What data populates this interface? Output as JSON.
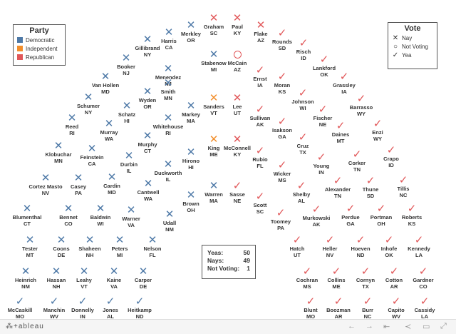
{
  "party_legend": {
    "title": "Party",
    "items": [
      {
        "label": "Democratic",
        "color": "#4e79a7"
      },
      {
        "label": "Independent",
        "color": "#f28e2b"
      },
      {
        "label": "Republican",
        "color": "#e15759"
      }
    ]
  },
  "vote_legend": {
    "title": "Vote",
    "items": [
      {
        "label": "Nay",
        "icon": "x-icon"
      },
      {
        "label": "Not Voting",
        "icon": "circle-icon"
      },
      {
        "label": "Yea",
        "icon": "check-icon"
      }
    ]
  },
  "tally": {
    "yeas_label": "Yeas:",
    "yeas": "50",
    "nays_label": "Nays:",
    "nays": "49",
    "nv_label": "Not Voting:",
    "nv": "1"
  },
  "colors": {
    "democratic": "#4e79a7",
    "independent": "#f28e2b",
    "republican": "#e15759"
  },
  "senators": [
    {
      "name": "Graham",
      "state": "SC",
      "party": "R",
      "vote": "nay"
    },
    {
      "name": "Paul",
      "state": "KY",
      "party": "R",
      "vote": "nay"
    },
    {
      "name": "Flake",
      "state": "AZ",
      "party": "R",
      "vote": "nay"
    },
    {
      "name": "Merkley",
      "state": "OR",
      "party": "D",
      "vote": "nay"
    },
    {
      "name": "Harris",
      "state": "CA",
      "party": "D",
      "vote": "nay"
    },
    {
      "name": "Rounds",
      "state": "SD",
      "party": "R",
      "vote": "yea"
    },
    {
      "name": "Gillibrand",
      "state": "NY",
      "party": "D",
      "vote": "nay"
    },
    {
      "name": "Risch",
      "state": "ID",
      "party": "R",
      "vote": "yea"
    },
    {
      "name": "Stabenow",
      "state": "MI",
      "party": "D",
      "vote": "nay"
    },
    {
      "name": "McCain",
      "state": "AZ",
      "party": "R",
      "vote": "nv"
    },
    {
      "name": "Booker",
      "state": "NJ",
      "party": "D",
      "vote": "nay"
    },
    {
      "name": "Lankford",
      "state": "OK",
      "party": "R",
      "vote": "yea"
    },
    {
      "name": "Menendez",
      "state": "NJ",
      "party": "D",
      "vote": "nay"
    },
    {
      "name": "Ernst",
      "state": "IA",
      "party": "R",
      "vote": "yea"
    },
    {
      "name": "Van Hollen",
      "state": "MD",
      "party": "D",
      "vote": "nay"
    },
    {
      "name": "Smith",
      "state": "MN",
      "party": "D",
      "vote": "nay"
    },
    {
      "name": "Moran",
      "state": "KS",
      "party": "R",
      "vote": "yea"
    },
    {
      "name": "Grassley",
      "state": "IA",
      "party": "R",
      "vote": "yea"
    },
    {
      "name": "Wyden",
      "state": "OR",
      "party": "D",
      "vote": "nay"
    },
    {
      "name": "Johnson",
      "state": "WI",
      "party": "R",
      "vote": "yea"
    },
    {
      "name": "Schumer",
      "state": "NY",
      "party": "D",
      "vote": "nay"
    },
    {
      "name": "Sanders",
      "state": "VT",
      "party": "I",
      "vote": "nay"
    },
    {
      "name": "Lee",
      "state": "UT",
      "party": "R",
      "vote": "nay"
    },
    {
      "name": "Barrasso",
      "state": "WY",
      "party": "R",
      "vote": "yea"
    },
    {
      "name": "Schatz",
      "state": "HI",
      "party": "D",
      "vote": "nay"
    },
    {
      "name": "Markey",
      "state": "MA",
      "party": "D",
      "vote": "nay"
    },
    {
      "name": "Sullivan",
      "state": "AK",
      "party": "R",
      "vote": "yea"
    },
    {
      "name": "Fischer",
      "state": "NE",
      "party": "R",
      "vote": "yea"
    },
    {
      "name": "Reed",
      "state": "RI",
      "party": "D",
      "vote": "nay"
    },
    {
      "name": "Whitehouse",
      "state": "RI",
      "party": "D",
      "vote": "nay"
    },
    {
      "name": "Murray",
      "state": "WA",
      "party": "D",
      "vote": "nay"
    },
    {
      "name": "Isakson",
      "state": "GA",
      "party": "R",
      "vote": "yea"
    },
    {
      "name": "Daines",
      "state": "MT",
      "party": "R",
      "vote": "yea"
    },
    {
      "name": "Enzi",
      "state": "WY",
      "party": "R",
      "vote": "yea"
    },
    {
      "name": "Murphy",
      "state": "CT",
      "party": "D",
      "vote": "nay"
    },
    {
      "name": "Cruz",
      "state": "TX",
      "party": "R",
      "vote": "yea"
    },
    {
      "name": "King",
      "state": "ME",
      "party": "I",
      "vote": "nay"
    },
    {
      "name": "McConnell",
      "state": "KY",
      "party": "R",
      "vote": "nay"
    },
    {
      "name": "Klobuchar",
      "state": "MN",
      "party": "D",
      "vote": "nay"
    },
    {
      "name": "Feinstein",
      "state": "CA",
      "party": "D",
      "vote": "nay"
    },
    {
      "name": "Durbin",
      "state": "IL",
      "party": "D",
      "vote": "nay"
    },
    {
      "name": "Hirono",
      "state": "HI",
      "party": "D",
      "vote": "nay"
    },
    {
      "name": "Rubio",
      "state": "FL",
      "party": "R",
      "vote": "yea"
    },
    {
      "name": "Young",
      "state": "IN",
      "party": "R",
      "vote": "yea"
    },
    {
      "name": "Corker",
      "state": "TN",
      "party": "R",
      "vote": "yea"
    },
    {
      "name": "Crapo",
      "state": "ID",
      "party": "R",
      "vote": "yea"
    },
    {
      "name": "Duckworth",
      "state": "IL",
      "party": "D",
      "vote": "nay"
    },
    {
      "name": "Wicker",
      "state": "MS",
      "party": "R",
      "vote": "yea"
    },
    {
      "name": "Cortez Masto",
      "state": "NV",
      "party": "D",
      "vote": "nay"
    },
    {
      "name": "Casey",
      "state": "PA",
      "party": "D",
      "vote": "nay"
    },
    {
      "name": "Cardin",
      "state": "MD",
      "party": "D",
      "vote": "nay"
    },
    {
      "name": "Cantwell",
      "state": "WA",
      "party": "D",
      "vote": "nay"
    },
    {
      "name": "Warren",
      "state": "MA",
      "party": "D",
      "vote": "nay"
    },
    {
      "name": "Sasse",
      "state": "NE",
      "party": "R",
      "vote": "yea"
    },
    {
      "name": "Shelby",
      "state": "AL",
      "party": "R",
      "vote": "yea"
    },
    {
      "name": "Alexander",
      "state": "TN",
      "party": "R",
      "vote": "yea"
    },
    {
      "name": "Thune",
      "state": "SD",
      "party": "R",
      "vote": "yea"
    },
    {
      "name": "Tillis",
      "state": "NC",
      "party": "R",
      "vote": "yea"
    },
    {
      "name": "Brown",
      "state": "OH",
      "party": "D",
      "vote": "nay"
    },
    {
      "name": "Scott",
      "state": "SC",
      "party": "R",
      "vote": "yea"
    },
    {
      "name": "Blumenthal",
      "state": "CT",
      "party": "D",
      "vote": "nay"
    },
    {
      "name": "Bennet",
      "state": "CO",
      "party": "D",
      "vote": "nay"
    },
    {
      "name": "Baldwin",
      "state": "WI",
      "party": "D",
      "vote": "nay"
    },
    {
      "name": "Warner",
      "state": "VA",
      "party": "D",
      "vote": "nay"
    },
    {
      "name": "Udall",
      "state": "NM",
      "party": "D",
      "vote": "nay"
    },
    {
      "name": "Toomey",
      "state": "PA",
      "party": "R",
      "vote": "yea"
    },
    {
      "name": "Murkowski",
      "state": "AK",
      "party": "R",
      "vote": "yea"
    },
    {
      "name": "Perdue",
      "state": "GA",
      "party": "R",
      "vote": "yea"
    },
    {
      "name": "Portman",
      "state": "OH",
      "party": "R",
      "vote": "yea"
    },
    {
      "name": "Roberts",
      "state": "KS",
      "party": "R",
      "vote": "yea"
    },
    {
      "name": "Tester",
      "state": "MT",
      "party": "D",
      "vote": "nay"
    },
    {
      "name": "Coons",
      "state": "DE",
      "party": "D",
      "vote": "nay"
    },
    {
      "name": "Shaheen",
      "state": "NH",
      "party": "D",
      "vote": "nay"
    },
    {
      "name": "Peters",
      "state": "MI",
      "party": "D",
      "vote": "nay"
    },
    {
      "name": "Nelson",
      "state": "FL",
      "party": "D",
      "vote": "nay"
    },
    {
      "name": "Hatch",
      "state": "UT",
      "party": "R",
      "vote": "yea"
    },
    {
      "name": "Heller",
      "state": "NV",
      "party": "R",
      "vote": "yea"
    },
    {
      "name": "Hoeven",
      "state": "ND",
      "party": "R",
      "vote": "yea"
    },
    {
      "name": "Inhofe",
      "state": "OK",
      "party": "R",
      "vote": "yea"
    },
    {
      "name": "Kennedy",
      "state": "LA",
      "party": "R",
      "vote": "yea"
    },
    {
      "name": "Heinrich",
      "state": "NM",
      "party": "D",
      "vote": "nay"
    },
    {
      "name": "Hassan",
      "state": "NH",
      "party": "D",
      "vote": "nay"
    },
    {
      "name": "Leahy",
      "state": "VT",
      "party": "D",
      "vote": "nay"
    },
    {
      "name": "Kaine",
      "state": "VA",
      "party": "D",
      "vote": "nay"
    },
    {
      "name": "Carper",
      "state": "DE",
      "party": "D",
      "vote": "nay"
    },
    {
      "name": "Cochran",
      "state": "MS",
      "party": "R",
      "vote": "yea"
    },
    {
      "name": "Collins",
      "state": "ME",
      "party": "R",
      "vote": "yea"
    },
    {
      "name": "Cornyn",
      "state": "TX",
      "party": "R",
      "vote": "yea"
    },
    {
      "name": "Cotton",
      "state": "AR",
      "party": "R",
      "vote": "yea"
    },
    {
      "name": "Gardner",
      "state": "CO",
      "party": "R",
      "vote": "yea"
    },
    {
      "name": "McCaskill",
      "state": "MO",
      "party": "D",
      "vote": "yea"
    },
    {
      "name": "Manchin",
      "state": "WV",
      "party": "D",
      "vote": "yea"
    },
    {
      "name": "Donnelly",
      "state": "IN",
      "party": "D",
      "vote": "yea"
    },
    {
      "name": "Jones",
      "state": "AL",
      "party": "D",
      "vote": "yea"
    },
    {
      "name": "Heitkamp",
      "state": "ND",
      "party": "D",
      "vote": "yea"
    },
    {
      "name": "Blunt",
      "state": "MO",
      "party": "R",
      "vote": "yea"
    },
    {
      "name": "Boozman",
      "state": "AR",
      "party": "R",
      "vote": "yea"
    },
    {
      "name": "Burr",
      "state": "NC",
      "party": "R",
      "vote": "yea"
    },
    {
      "name": "Capito",
      "state": "WV",
      "party": "R",
      "vote": "yea"
    },
    {
      "name": "Cassidy",
      "state": "LA",
      "party": "R",
      "vote": "yea"
    }
  ],
  "footer": {
    "brand": "⁂+ableau",
    "buttons": [
      {
        "label": "←",
        "icon": "undo-icon"
      },
      {
        "label": "→",
        "icon": "redo-icon"
      },
      {
        "label": "⇤",
        "icon": "revert-icon"
      },
      {
        "label": "≺",
        "icon": "share-icon"
      },
      {
        "label": "▭",
        "icon": "comment-icon"
      },
      {
        "label": "⤢",
        "icon": "fullscreen-icon"
      }
    ]
  }
}
